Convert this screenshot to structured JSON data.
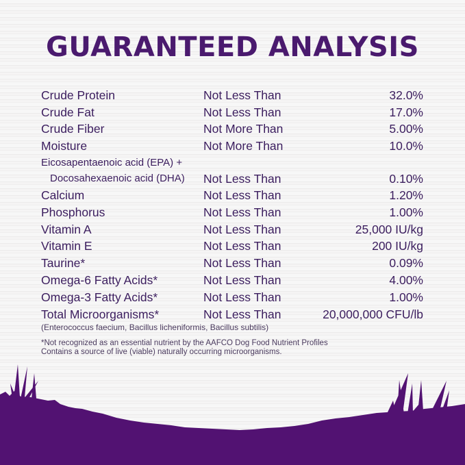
{
  "title": "GUARANTEED ANALYSIS",
  "colors": {
    "brand_purple": "#521272",
    "text": "#3b1d5e"
  },
  "rows": [
    {
      "nutrient": "Crude Protein",
      "claim": "Not Less Than",
      "value": "32.0%"
    },
    {
      "nutrient": "Crude Fat",
      "claim": "Not Less Than",
      "value": "17.0%"
    },
    {
      "nutrient": "Crude Fiber",
      "claim": "Not More Than",
      "value": "5.00%"
    },
    {
      "nutrient": "Moisture",
      "claim": "Not More Than",
      "value": "10.0%"
    },
    {
      "nutrient": "Eicosapentaenoic acid (EPA) +",
      "nutrient2": "Docosahexaenoic acid (DHA)",
      "claim": "Not Less Than",
      "value": "0.10%"
    },
    {
      "nutrient": "Calcium",
      "claim": "Not Less Than",
      "value": "1.20%"
    },
    {
      "nutrient": "Phosphorus",
      "claim": "Not Less Than",
      "value": "1.00%"
    },
    {
      "nutrient": "Vitamin A",
      "claim": "Not Less Than",
      "value": "25,000 IU/kg"
    },
    {
      "nutrient": "Vitamin E",
      "claim": "Not Less Than",
      "value": "200 IU/kg"
    },
    {
      "nutrient": "Taurine*",
      "claim": "Not Less Than",
      "value": "0.09%"
    },
    {
      "nutrient": "Omega-6 Fatty Acids*",
      "claim": "Not Less Than",
      "value": "4.00%"
    },
    {
      "nutrient": "Omega-3 Fatty Acids*",
      "claim": "Not Less Than",
      "value": "1.00%"
    },
    {
      "nutrient": "Total Microorganisms*",
      "claim": "Not Less Than",
      "value": "20,000,000 CFU/lb"
    }
  ],
  "microorganisms_note": "(Enterococcus faecium, Bacillus licheniformis, Bacillus subtilis)",
  "footnote1": "*Not recognized as an essential nutrient by the AAFCO Dog Food Nutrient Profiles",
  "footnote2": "Contains a source of live (viable) naturally occurring microorganisms."
}
